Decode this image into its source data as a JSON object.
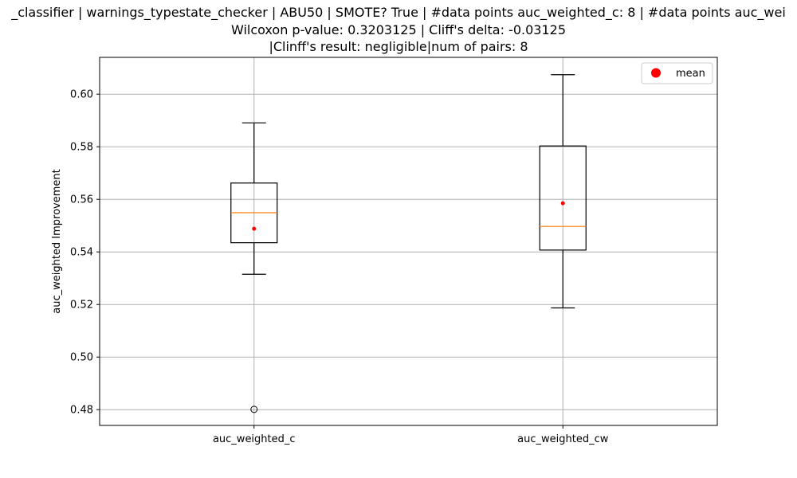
{
  "chart_data": {
    "type": "box",
    "title": [
      "_classifier | warnings_typestate_checker | ABU50 | SMOTE? True | #data points auc_weighted_c: 8 | #data points auc_wei",
      "Wilcoxon p-value: 0.3203125 | Cliff's delta: -0.03125",
      "|Clinff's result: negligible|num of pairs: 8"
    ],
    "xlabel": "",
    "ylabel": "auc_weighted Improvement",
    "categories": [
      "auc_weighted_c",
      "auc_weighted_cw"
    ],
    "ylim": [
      0.474,
      0.614
    ],
    "yticks": [
      "0.48",
      "0.50",
      "0.52",
      "0.54",
      "0.56",
      "0.58",
      "0.60"
    ],
    "grid": true,
    "legend": {
      "position": "top-right",
      "entries": [
        "mean"
      ]
    },
    "boxes": [
      {
        "name": "auc_weighted_c",
        "whisker_low": 0.5315,
        "q1": 0.5435,
        "median": 0.5549,
        "q3": 0.5662,
        "whisker_high": 0.5891,
        "mean": 0.5488,
        "outliers": [
          0.4801
        ]
      },
      {
        "name": "auc_weighted_cw",
        "whisker_low": 0.5187,
        "q1": 0.5407,
        "median": 0.5497,
        "q3": 0.5803,
        "whisker_high": 0.6074,
        "mean": 0.5585,
        "outliers": []
      }
    ],
    "colors": {
      "median": "#ff7f0e",
      "mean": "#ff0000",
      "box": "#000000",
      "grid": "#b0b0b0"
    }
  }
}
